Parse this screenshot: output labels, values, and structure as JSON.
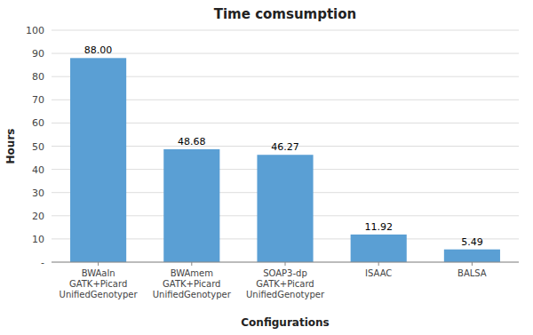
{
  "chart_data": {
    "type": "bar",
    "title": "Time comsumption",
    "xlabel": "Configurations",
    "ylabel": "Hours",
    "categories": [
      "BWAaln\nGATK+Picard\nUnifiedGenotyper",
      "BWAmem\nGATK+Picard\nUnifiedGenotyper",
      "SOAP3-dp\nGATK+Picard\nUnifiedGenotyper",
      "ISAAC",
      "BALSA"
    ],
    "values": [
      88.0,
      48.68,
      46.27,
      11.92,
      5.49
    ],
    "value_labels": [
      "88.00",
      "48.68",
      "46.27",
      "11.92",
      "5.49"
    ],
    "data_labels": true,
    "color": "#5a9fd4",
    "ylim": [
      0,
      100
    ],
    "yticks": [
      {
        "value": 0,
        "label": "-"
      },
      10,
      20,
      30,
      40,
      50,
      60,
      70,
      80,
      90,
      100
    ],
    "grid": true
  }
}
